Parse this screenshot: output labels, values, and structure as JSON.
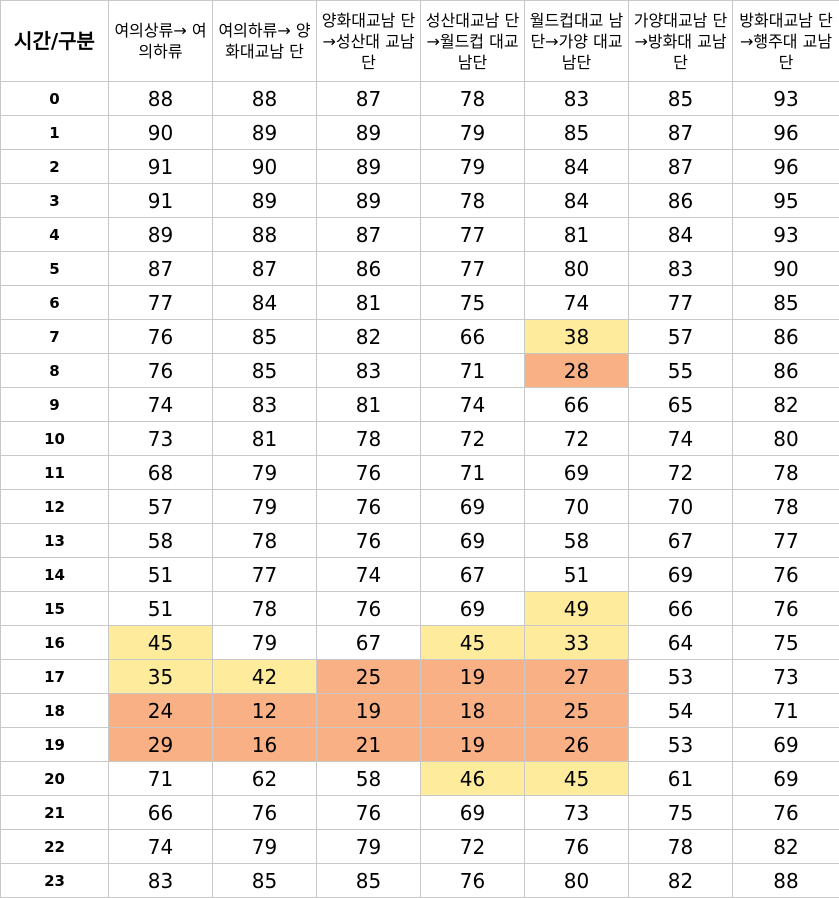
{
  "table": {
    "corner_label": "시간/구분",
    "columns": [
      "여의상류→ 여의하류",
      "여의하류→ 양화대교남 단",
      "양화대교남 단→성산대 교남단",
      "성산대교남 단→월드컵 대교남단",
      "월드컵대교 남단→가양 대교남단",
      "가양대교남 단→방화대 교남단",
      "방화대교남 단→행주대 교남단"
    ],
    "colors": {
      "warn": "#ffeb9c",
      "bad": "#f8b084",
      "border": "#c8c8c8"
    },
    "rows": [
      {
        "hour": "0",
        "values": [
          "88",
          "88",
          "87",
          "78",
          "83",
          "85",
          "93"
        ],
        "levels": [
          "",
          "",
          "",
          "",
          "",
          "",
          ""
        ]
      },
      {
        "hour": "1",
        "values": [
          "90",
          "89",
          "89",
          "79",
          "85",
          "87",
          "96"
        ],
        "levels": [
          "",
          "",
          "",
          "",
          "",
          "",
          ""
        ]
      },
      {
        "hour": "2",
        "values": [
          "91",
          "90",
          "89",
          "79",
          "84",
          "87",
          "96"
        ],
        "levels": [
          "",
          "",
          "",
          "",
          "",
          "",
          ""
        ]
      },
      {
        "hour": "3",
        "values": [
          "91",
          "89",
          "89",
          "78",
          "84",
          "86",
          "95"
        ],
        "levels": [
          "",
          "",
          "",
          "",
          "",
          "",
          ""
        ]
      },
      {
        "hour": "4",
        "values": [
          "89",
          "88",
          "87",
          "77",
          "81",
          "84",
          "93"
        ],
        "levels": [
          "",
          "",
          "",
          "",
          "",
          "",
          ""
        ]
      },
      {
        "hour": "5",
        "values": [
          "87",
          "87",
          "86",
          "77",
          "80",
          "83",
          "90"
        ],
        "levels": [
          "",
          "",
          "",
          "",
          "",
          "",
          ""
        ]
      },
      {
        "hour": "6",
        "values": [
          "77",
          "84",
          "81",
          "75",
          "74",
          "77",
          "85"
        ],
        "levels": [
          "",
          "",
          "",
          "",
          "",
          "",
          ""
        ]
      },
      {
        "hour": "7",
        "values": [
          "76",
          "85",
          "82",
          "66",
          "38",
          "57",
          "86"
        ],
        "levels": [
          "",
          "",
          "",
          "",
          "warn",
          "",
          ""
        ]
      },
      {
        "hour": "8",
        "values": [
          "76",
          "85",
          "83",
          "71",
          "28",
          "55",
          "86"
        ],
        "levels": [
          "",
          "",
          "",
          "",
          "bad",
          "",
          ""
        ]
      },
      {
        "hour": "9",
        "values": [
          "74",
          "83",
          "81",
          "74",
          "66",
          "65",
          "82"
        ],
        "levels": [
          "",
          "",
          "",
          "",
          "",
          "",
          ""
        ]
      },
      {
        "hour": "10",
        "values": [
          "73",
          "81",
          "78",
          "72",
          "72",
          "74",
          "80"
        ],
        "levels": [
          "",
          "",
          "",
          "",
          "",
          "",
          ""
        ]
      },
      {
        "hour": "11",
        "values": [
          "68",
          "79",
          "76",
          "71",
          "69",
          "72",
          "78"
        ],
        "levels": [
          "",
          "",
          "",
          "",
          "",
          "",
          ""
        ]
      },
      {
        "hour": "12",
        "values": [
          "57",
          "79",
          "76",
          "69",
          "70",
          "70",
          "78"
        ],
        "levels": [
          "",
          "",
          "",
          "",
          "",
          "",
          ""
        ]
      },
      {
        "hour": "13",
        "values": [
          "58",
          "78",
          "76",
          "69",
          "58",
          "67",
          "77"
        ],
        "levels": [
          "",
          "",
          "",
          "",
          "",
          "",
          ""
        ]
      },
      {
        "hour": "14",
        "values": [
          "51",
          "77",
          "74",
          "67",
          "51",
          "69",
          "76"
        ],
        "levels": [
          "",
          "",
          "",
          "",
          "",
          "",
          ""
        ]
      },
      {
        "hour": "15",
        "values": [
          "51",
          "78",
          "76",
          "69",
          "49",
          "66",
          "76"
        ],
        "levels": [
          "",
          "",
          "",
          "",
          "warn",
          "",
          ""
        ]
      },
      {
        "hour": "16",
        "values": [
          "45",
          "79",
          "67",
          "45",
          "33",
          "64",
          "75"
        ],
        "levels": [
          "warn",
          "",
          "",
          "warn",
          "warn",
          "",
          ""
        ]
      },
      {
        "hour": "17",
        "values": [
          "35",
          "42",
          "25",
          "19",
          "27",
          "53",
          "73"
        ],
        "levels": [
          "warn",
          "warn",
          "bad",
          "bad",
          "bad",
          "",
          ""
        ]
      },
      {
        "hour": "18",
        "values": [
          "24",
          "12",
          "19",
          "18",
          "25",
          "54",
          "71"
        ],
        "levels": [
          "bad",
          "bad",
          "bad",
          "bad",
          "bad",
          "",
          ""
        ]
      },
      {
        "hour": "19",
        "values": [
          "29",
          "16",
          "21",
          "19",
          "26",
          "53",
          "69"
        ],
        "levels": [
          "bad",
          "bad",
          "bad",
          "bad",
          "bad",
          "",
          ""
        ]
      },
      {
        "hour": "20",
        "values": [
          "71",
          "62",
          "58",
          "46",
          "45",
          "61",
          "69"
        ],
        "levels": [
          "",
          "",
          "",
          "warn",
          "warn",
          "",
          ""
        ]
      },
      {
        "hour": "21",
        "values": [
          "66",
          "76",
          "76",
          "69",
          "73",
          "75",
          "76"
        ],
        "levels": [
          "",
          "",
          "",
          "",
          "",
          "",
          ""
        ]
      },
      {
        "hour": "22",
        "values": [
          "74",
          "79",
          "79",
          "72",
          "76",
          "78",
          "82"
        ],
        "levels": [
          "",
          "",
          "",
          "",
          "",
          "",
          ""
        ]
      },
      {
        "hour": "23",
        "values": [
          "83",
          "85",
          "85",
          "76",
          "80",
          "82",
          "88"
        ],
        "levels": [
          "",
          "",
          "",
          "",
          "",
          "",
          ""
        ]
      }
    ]
  }
}
